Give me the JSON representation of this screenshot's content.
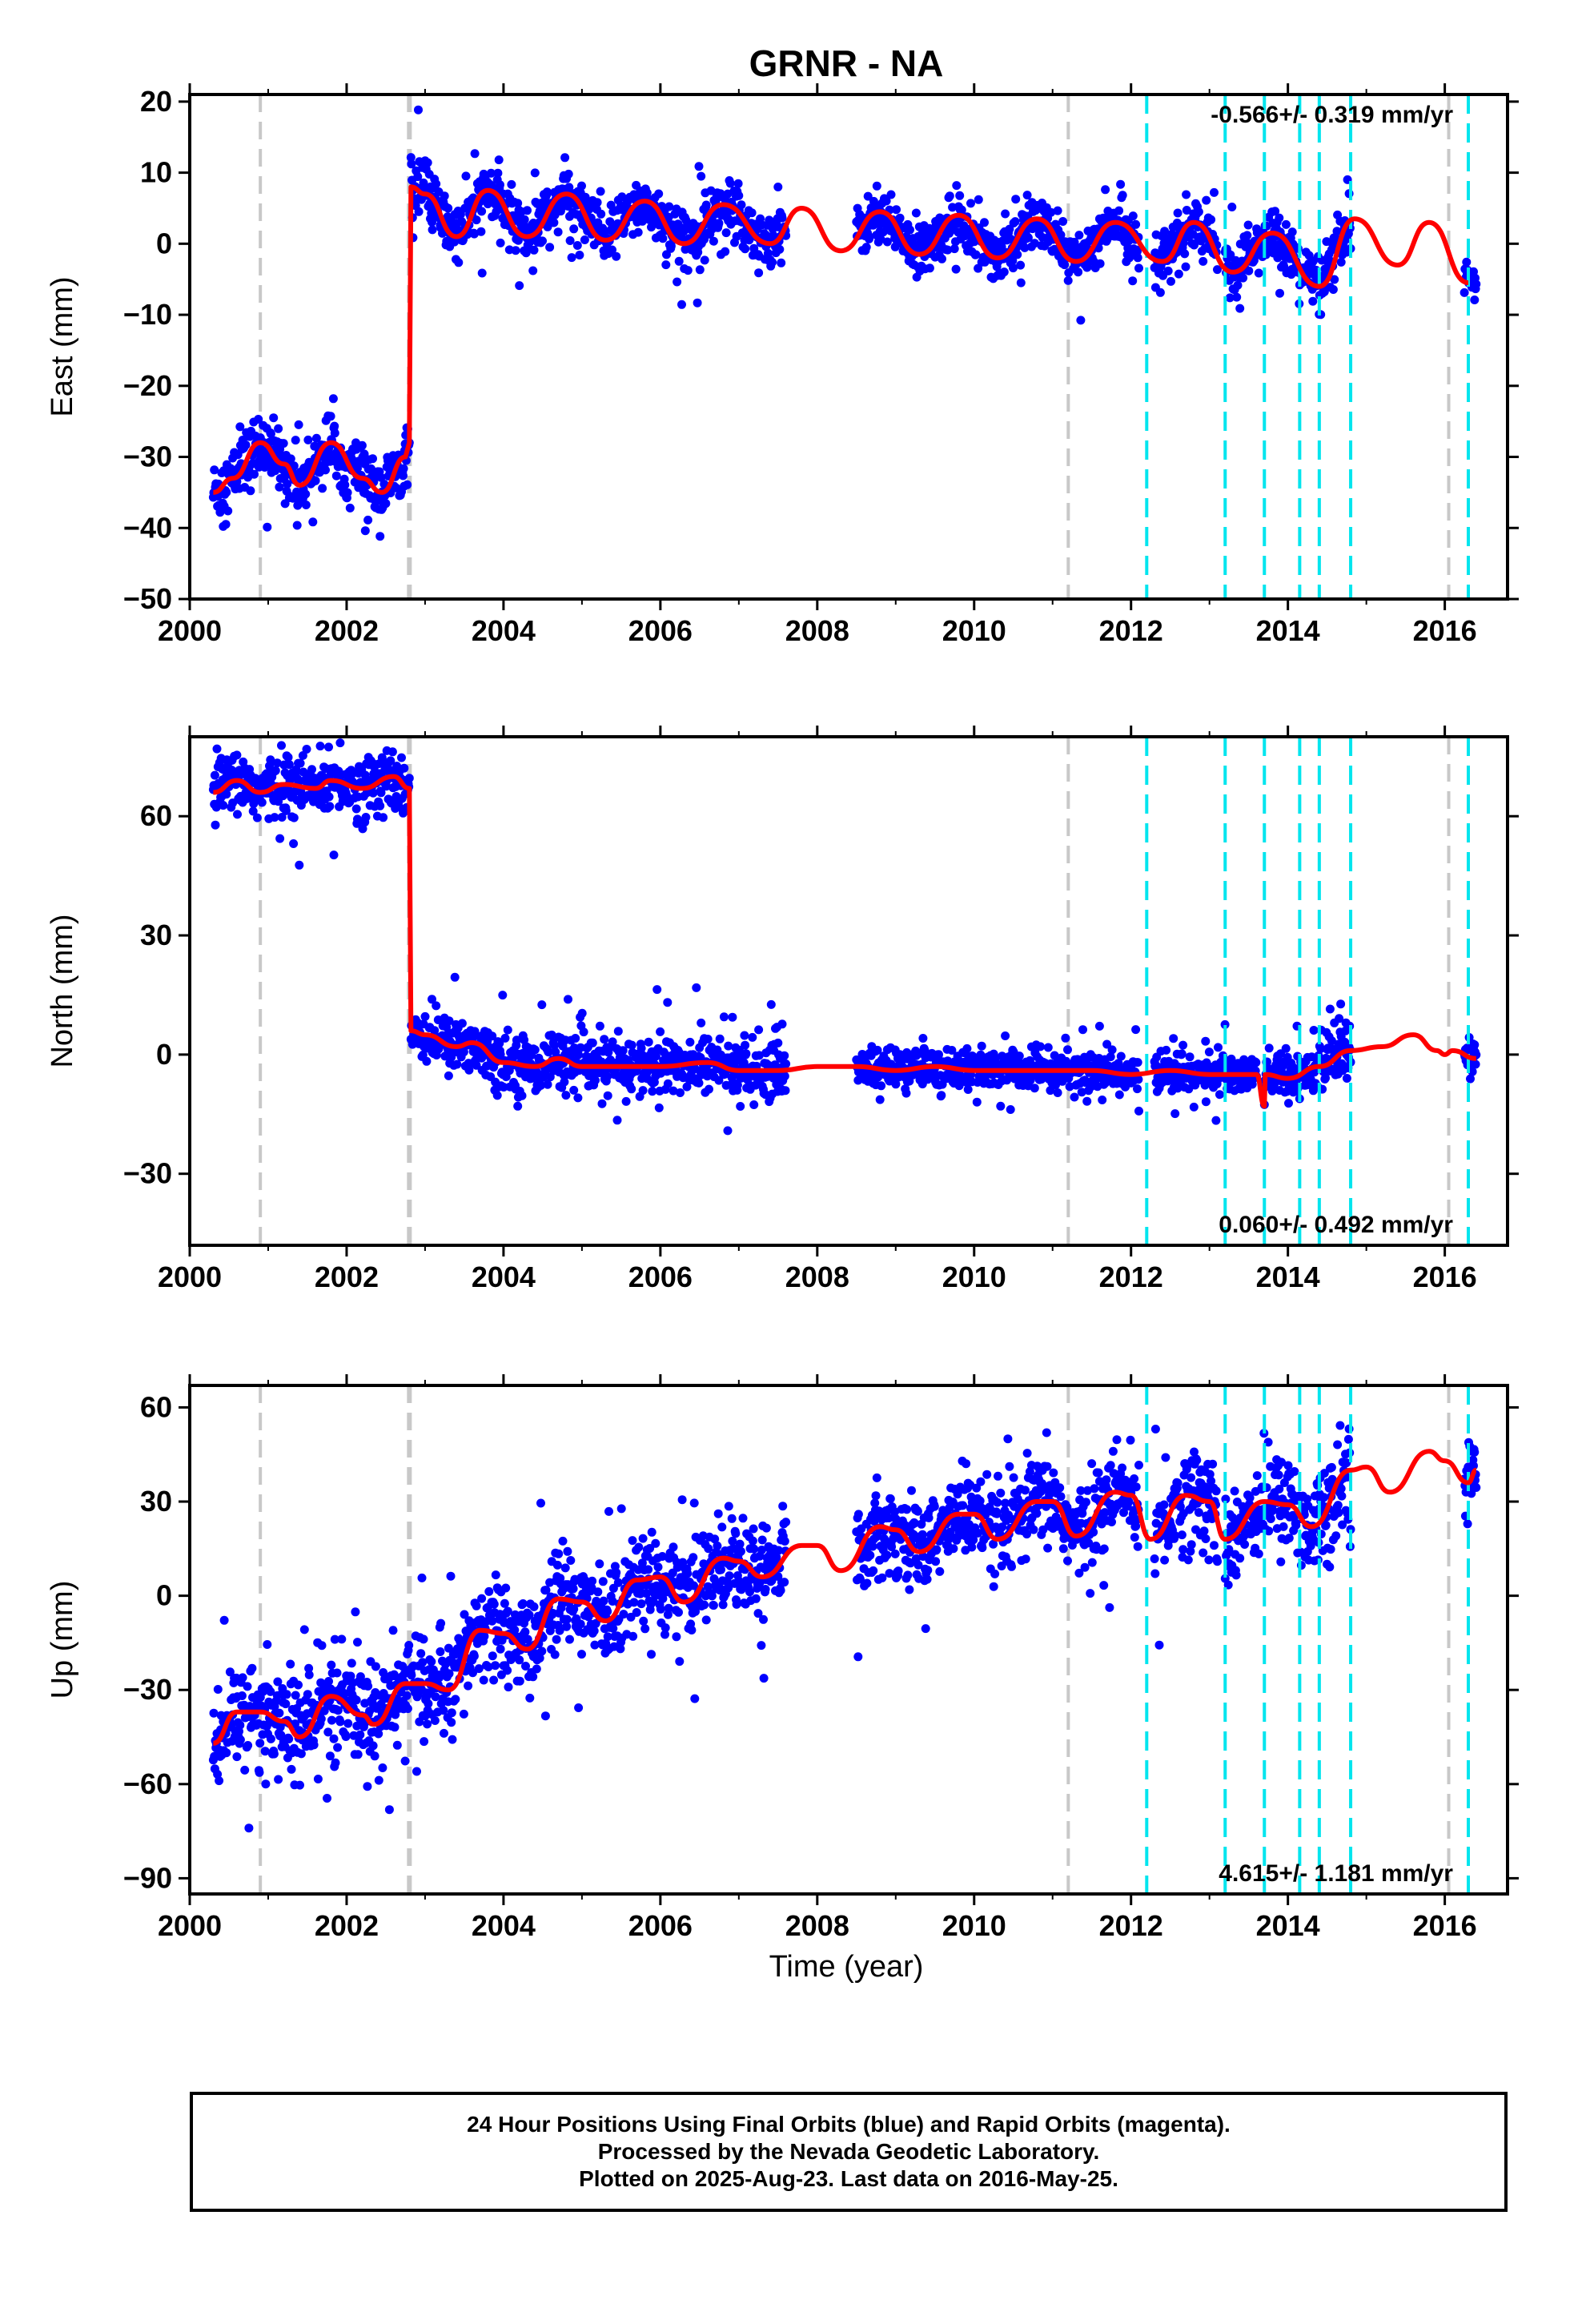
{
  "title": "GRNR - NA",
  "xlabel": "Time (year)",
  "colors": {
    "data": "#0000ff",
    "model": "#ff0000",
    "gray_lines": "#c8c8c8",
    "cyan_lines": "#00e5ee"
  },
  "caption": [
    "24 Hour Positions Using Final Orbits (blue) and Rapid Orbits (magenta).",
    "Processed by the Nevada Geodetic Laboratory.",
    "Plotted on 2025-Aug-23. Last data on 2016-May-25."
  ],
  "chart_data": [
    {
      "type": "scatter",
      "name": "east",
      "ylabel": "East (mm)",
      "velocity_label": "-0.566+/- 0.319 mm/yr",
      "xlim": [
        2000.0,
        2016.8
      ],
      "ylim": [
        -50,
        21
      ],
      "xticks": [
        2000,
        2002,
        2004,
        2006,
        2008,
        2010,
        2012,
        2014,
        2016
      ],
      "yticks": [
        -50,
        -40,
        -30,
        -20,
        -10,
        0,
        10,
        20
      ],
      "segments": [
        {
          "x0": 2000.3,
          "x1": 2002.8,
          "offset": -32,
          "trend": 0,
          "amp": 3.5,
          "noise": 2.2
        },
        {
          "x0": 2002.82,
          "x1": 2007.6,
          "offset": 5,
          "trend": -0.566,
          "amp": 3.2,
          "noise": 2.0
        },
        {
          "x0": 2008.5,
          "x1": 2012.1,
          "offset": 5,
          "trend": -0.566,
          "amp": 2.8,
          "noise": 1.8
        },
        {
          "x0": 2012.3,
          "x1": 2013.1,
          "offset": 5,
          "trend": -0.566,
          "amp": 2.8,
          "noise": 1.8
        },
        {
          "x0": 2013.2,
          "x1": 2014.8,
          "offset": 5.5,
          "trend": -0.8,
          "amp": 2.8,
          "noise": 1.8
        },
        {
          "x0": 2016.25,
          "x1": 2016.4,
          "offset": -5,
          "trend": 0,
          "amp": 0,
          "noise": 1.2
        }
      ],
      "model_points": [
        [
          2000.3,
          -35
        ],
        [
          2000.55,
          -33
        ],
        [
          2000.9,
          -28
        ],
        [
          2001.2,
          -31
        ],
        [
          2001.4,
          -34
        ],
        [
          2001.8,
          -28
        ],
        [
          2002.2,
          -33
        ],
        [
          2002.45,
          -35
        ],
        [
          2002.75,
          -30
        ],
        [
          2002.8,
          -28
        ],
        [
          2002.82,
          8
        ],
        [
          2003.0,
          7
        ],
        [
          2003.4,
          1
        ],
        [
          2003.8,
          7.5
        ],
        [
          2004.3,
          1
        ],
        [
          2004.8,
          7
        ],
        [
          2005.3,
          0.5
        ],
        [
          2005.8,
          6
        ],
        [
          2006.3,
          0
        ],
        [
          2006.8,
          5.5
        ],
        [
          2007.4,
          0
        ],
        [
          2007.8,
          5
        ],
        [
          2008.3,
          -1
        ],
        [
          2008.8,
          4.5
        ],
        [
          2009.3,
          -1.5
        ],
        [
          2009.8,
          4
        ],
        [
          2010.3,
          -2
        ],
        [
          2010.8,
          3.5
        ],
        [
          2011.3,
          -2.5
        ],
        [
          2011.8,
          3
        ],
        [
          2012.4,
          -2.5
        ],
        [
          2012.8,
          3
        ],
        [
          2013.3,
          -4
        ],
        [
          2013.8,
          1.5
        ],
        [
          2014.4,
          -6
        ],
        [
          2014.85,
          3.5
        ],
        [
          2015.4,
          -3
        ],
        [
          2015.8,
          3
        ],
        [
          2016.3,
          -5.5
        ]
      ],
      "gray_lines": [
        2000.9,
        2002.8,
        2011.2,
        2016.05
      ],
      "cyan_lines": [
        2012.2,
        2013.2,
        2013.7,
        2014.15,
        2014.4,
        2014.8,
        2016.3
      ]
    },
    {
      "type": "scatter",
      "name": "north",
      "ylabel": "North (mm)",
      "velocity_label": "0.060+/- 0.492 mm/yr",
      "xlim": [
        2000.0,
        2016.8
      ],
      "ylim": [
        -48,
        80
      ],
      "xticks": [
        2000,
        2002,
        2004,
        2006,
        2008,
        2010,
        2012,
        2014,
        2016
      ],
      "yticks": [
        -30,
        0,
        30,
        60
      ],
      "segments": [
        {
          "x0": 2000.3,
          "x1": 2002.8,
          "offset": 68,
          "trend": 0,
          "amp": 1.5,
          "noise": 4.0
        },
        {
          "x0": 2002.82,
          "x1": 2007.6,
          "offset": 1,
          "trend": -0.9,
          "amp": 1.5,
          "noise": 3.5
        },
        {
          "x0": 2008.5,
          "x1": 2012.1,
          "offset": -4,
          "trend": 0,
          "amp": 1.5,
          "noise": 2.5
        },
        {
          "x0": 2012.3,
          "x1": 2013.6,
          "offset": -4,
          "trend": 0,
          "amp": 1.5,
          "noise": 2.5
        },
        {
          "x0": 2013.7,
          "x1": 2014.8,
          "offset": -3,
          "trend": 1.5,
          "amp": 1.5,
          "noise": 3.0
        },
        {
          "x0": 2016.25,
          "x1": 2016.4,
          "offset": 0,
          "trend": 0,
          "amp": 0,
          "noise": 2.0
        }
      ],
      "model_points": [
        [
          2000.3,
          66
        ],
        [
          2000.6,
          69
        ],
        [
          2000.9,
          66
        ],
        [
          2001.2,
          68
        ],
        [
          2001.6,
          67
        ],
        [
          2001.8,
          69
        ],
        [
          2002.2,
          67
        ],
        [
          2002.6,
          70
        ],
        [
          2002.8,
          67
        ],
        [
          2002.82,
          6
        ],
        [
          2003.0,
          5
        ],
        [
          2003.4,
          2
        ],
        [
          2003.6,
          3
        ],
        [
          2004.0,
          -2
        ],
        [
          2004.4,
          -3
        ],
        [
          2004.7,
          -1
        ],
        [
          2005.0,
          -3
        ],
        [
          2005.6,
          -3
        ],
        [
          2006.0,
          -3
        ],
        [
          2006.6,
          -2
        ],
        [
          2007.0,
          -4
        ],
        [
          2007.5,
          -4
        ],
        [
          2008.0,
          -3
        ],
        [
          2008.5,
          -3
        ],
        [
          2009.0,
          -4
        ],
        [
          2009.5,
          -3
        ],
        [
          2010.0,
          -4
        ],
        [
          2010.5,
          -4
        ],
        [
          2011.0,
          -4
        ],
        [
          2011.5,
          -4
        ],
        [
          2012.0,
          -5
        ],
        [
          2012.5,
          -4
        ],
        [
          2013.0,
          -5
        ],
        [
          2013.6,
          -5
        ],
        [
          2013.7,
          -13
        ],
        [
          2013.71,
          -5
        ],
        [
          2014.0,
          -6
        ],
        [
          2014.4,
          -3
        ],
        [
          2014.8,
          1
        ],
        [
          2015.2,
          2
        ],
        [
          2015.6,
          5
        ],
        [
          2015.9,
          1
        ],
        [
          2016.0,
          0
        ],
        [
          2016.1,
          1
        ],
        [
          2016.4,
          -1
        ]
      ],
      "gray_lines": [
        2000.9,
        2002.8,
        2011.2,
        2016.05
      ],
      "cyan_lines": [
        2012.2,
        2013.2,
        2013.7,
        2014.15,
        2014.4,
        2014.8,
        2016.3
      ]
    },
    {
      "type": "scatter",
      "name": "up",
      "ylabel": "Up (mm)",
      "velocity_label": "4.615+/- 1.181 mm/yr",
      "xlim": [
        2000.0,
        2016.8
      ],
      "ylim": [
        -95,
        67
      ],
      "xticks": [
        2000,
        2002,
        2004,
        2006,
        2008,
        2010,
        2012,
        2014,
        2016
      ],
      "yticks": [
        -90,
        -60,
        -30,
        0,
        30,
        60
      ],
      "segments": [
        {
          "x0": 2000.3,
          "x1": 2002.8,
          "offset": -42,
          "trend": 4.615,
          "amp": 4.5,
          "noise": 8.0
        },
        {
          "x0": 2002.82,
          "x1": 2007.6,
          "offset": -30,
          "trend": 4.615,
          "amp": 5.5,
          "noise": 7.5
        },
        {
          "x0": 2008.5,
          "x1": 2012.1,
          "offset": 14,
          "trend": 3.5,
          "amp": 5,
          "noise": 7.0
        },
        {
          "x0": 2012.3,
          "x1": 2013.1,
          "offset": 27,
          "trend": 0,
          "amp": 6,
          "noise": 8.0
        },
        {
          "x0": 2013.2,
          "x1": 2014.8,
          "offset": 27,
          "trend": 4,
          "amp": 6,
          "noise": 8.0
        },
        {
          "x0": 2016.25,
          "x1": 2016.4,
          "offset": 40,
          "trend": 0,
          "amp": 0,
          "noise": 6.0
        }
      ],
      "model_points": [
        [
          2000.3,
          -47
        ],
        [
          2000.6,
          -37
        ],
        [
          2000.9,
          -37
        ],
        [
          2001.2,
          -40
        ],
        [
          2001.4,
          -45
        ],
        [
          2001.8,
          -32
        ],
        [
          2002.2,
          -38
        ],
        [
          2002.35,
          -41
        ],
        [
          2002.75,
          -28
        ],
        [
          2002.8,
          -28
        ],
        [
          2003.0,
          -28
        ],
        [
          2003.3,
          -30
        ],
        [
          2003.7,
          -11
        ],
        [
          2004.0,
          -12
        ],
        [
          2004.3,
          -17
        ],
        [
          2004.7,
          -1
        ],
        [
          2005.0,
          -2
        ],
        [
          2005.3,
          -8
        ],
        [
          2005.7,
          5
        ],
        [
          2006.0,
          6
        ],
        [
          2006.3,
          -2
        ],
        [
          2006.8,
          12
        ],
        [
          2007.0,
          11
        ],
        [
          2007.3,
          6
        ],
        [
          2007.8,
          16
        ],
        [
          2008.0,
          16
        ],
        [
          2008.3,
          8
        ],
        [
          2008.8,
          22
        ],
        [
          2009.0,
          21
        ],
        [
          2009.3,
          14
        ],
        [
          2009.8,
          26
        ],
        [
          2010.0,
          26
        ],
        [
          2010.3,
          18
        ],
        [
          2010.8,
          30
        ],
        [
          2011.0,
          30
        ],
        [
          2011.3,
          19
        ],
        [
          2011.8,
          33
        ],
        [
          2012.0,
          32
        ],
        [
          2012.25,
          18
        ],
        [
          2012.7,
          32
        ],
        [
          2013.0,
          30
        ],
        [
          2013.2,
          18
        ],
        [
          2013.7,
          30
        ],
        [
          2014.0,
          29
        ],
        [
          2014.3,
          22
        ],
        [
          2014.8,
          40
        ],
        [
          2015.0,
          41
        ],
        [
          2015.3,
          33
        ],
        [
          2015.8,
          46
        ],
        [
          2016.0,
          43
        ],
        [
          2016.3,
          36
        ],
        [
          2016.4,
          40
        ]
      ],
      "gray_lines": [
        2000.9,
        2002.8,
        2011.2,
        2016.05
      ],
      "cyan_lines": [
        2012.2,
        2013.2,
        2013.7,
        2014.15,
        2014.4,
        2014.8,
        2016.3
      ]
    }
  ]
}
